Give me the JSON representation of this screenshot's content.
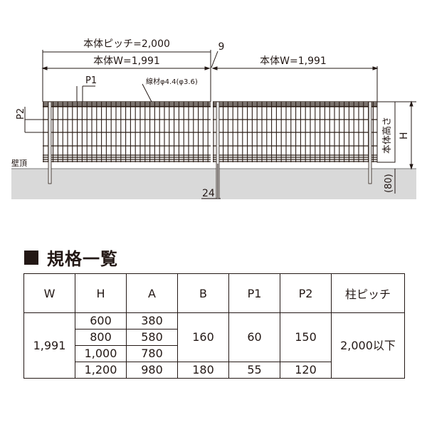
{
  "drawing": {
    "pitch_label": "本体ピッチ=2,000",
    "gap_label": "9",
    "width_label_left": "本体W=1,991",
    "width_label_right": "本体W=1,991",
    "p1_label": "P1",
    "p2_label": "P2",
    "wire_label": "線材φ4.4(φ3.6)",
    "wall_top_label": "壁頂",
    "post_label": "24",
    "height_box_label": "本体高さ",
    "h_label": "H",
    "embed_label": "(80)",
    "colors": {
      "fence": "#2b1d16",
      "ground": "#d9d9d9"
    }
  },
  "section": {
    "title": "規格一覧",
    "icon": "black-square-icon"
  },
  "table": {
    "headers": [
      "W",
      "H",
      "A",
      "B",
      "P1",
      "P2",
      "柱ピッチ"
    ],
    "w": "1,991",
    "rows": [
      {
        "h": "600",
        "a": "380"
      },
      {
        "h": "800",
        "a": "580"
      },
      {
        "h": "1,000",
        "a": "780"
      },
      {
        "h": "1,200",
        "a": "980"
      }
    ],
    "group1": {
      "b": "160",
      "p1": "60",
      "p2": "150"
    },
    "group2": {
      "b": "180",
      "p1": "55",
      "p2": "120"
    },
    "pitch": "2,000以下"
  }
}
